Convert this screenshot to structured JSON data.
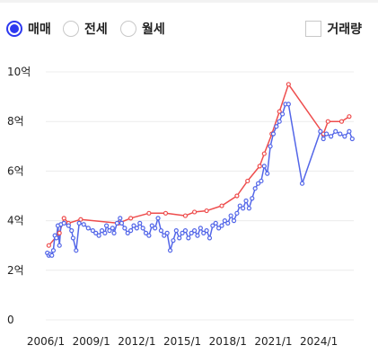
{
  "controls": {
    "radios": [
      {
        "label": "매매",
        "selected": true
      },
      {
        "label": "전세",
        "selected": false
      },
      {
        "label": "월세",
        "selected": false
      }
    ],
    "checkbox": {
      "label": "거래량",
      "checked": false
    }
  },
  "colors": {
    "accent": "#2d39f0",
    "max_line": "#ee4d4d",
    "min_line": "#5366e8",
    "grid": "#ececec"
  },
  "chart_data": {
    "type": "line",
    "title": "",
    "xlabel": "",
    "ylabel": "",
    "unit": "억",
    "ylim": [
      0,
      10
    ],
    "xlim": [
      2006.0,
      2026.3
    ],
    "yticks": [
      0,
      2,
      4,
      6,
      8,
      10
    ],
    "yticklabels": [
      "0",
      "2억",
      "4억",
      "6억",
      "8억",
      "10억"
    ],
    "xticks": [
      2006,
      2009,
      2012,
      2015,
      2018,
      2021,
      2024
    ],
    "xticklabels": [
      "2006/1",
      "2009/1",
      "2012/1",
      "2015/1",
      "2018/1",
      "2021/1",
      "2024/1"
    ],
    "grid": true,
    "series": [
      {
        "color": "#ee4d4d",
        "points": [
          [
            2006.2,
            3.0
          ],
          [
            2006.9,
            3.5
          ],
          [
            2007.2,
            4.1
          ],
          [
            2007.5,
            3.9
          ],
          [
            2008.3,
            4.05
          ],
          [
            2010.8,
            3.9
          ],
          [
            2011.6,
            4.1
          ],
          [
            2012.8,
            4.3
          ],
          [
            2013.9,
            4.3
          ],
          [
            2015.2,
            4.2
          ],
          [
            2015.8,
            4.35
          ],
          [
            2016.6,
            4.4
          ],
          [
            2017.6,
            4.6
          ],
          [
            2018.6,
            5.0
          ],
          [
            2019.3,
            5.6
          ],
          [
            2020.1,
            6.2
          ],
          [
            2020.4,
            6.7
          ],
          [
            2020.9,
            7.5
          ],
          [
            2021.4,
            8.4
          ],
          [
            2022.0,
            9.5
          ],
          [
            2024.3,
            7.5
          ],
          [
            2024.6,
            8.0
          ],
          [
            2025.5,
            8.0
          ],
          [
            2026.0,
            8.2
          ]
        ]
      },
      {
        "color": "#5366e8",
        "points": [
          [
            2006.1,
            2.7
          ],
          [
            2006.2,
            2.6
          ],
          [
            2006.3,
            2.65
          ],
          [
            2006.4,
            2.6
          ],
          [
            2006.5,
            2.8
          ],
          [
            2006.6,
            3.4
          ],
          [
            2006.7,
            3.3
          ],
          [
            2006.8,
            3.8
          ],
          [
            2006.9,
            3.0
          ],
          [
            2007.0,
            3.85
          ],
          [
            2007.2,
            3.9
          ],
          [
            2007.5,
            3.8
          ],
          [
            2007.7,
            3.6
          ],
          [
            2007.8,
            3.3
          ],
          [
            2008.0,
            2.8
          ],
          [
            2008.2,
            3.9
          ],
          [
            2008.5,
            3.85
          ],
          [
            2008.8,
            3.7
          ],
          [
            2009.1,
            3.6
          ],
          [
            2009.3,
            3.5
          ],
          [
            2009.5,
            3.4
          ],
          [
            2009.7,
            3.6
          ],
          [
            2009.9,
            3.5
          ],
          [
            2010.0,
            3.8
          ],
          [
            2010.2,
            3.6
          ],
          [
            2010.4,
            3.7
          ],
          [
            2010.5,
            3.5
          ],
          [
            2010.7,
            3.9
          ],
          [
            2010.9,
            4.1
          ],
          [
            2011.0,
            3.9
          ],
          [
            2011.2,
            3.7
          ],
          [
            2011.4,
            3.5
          ],
          [
            2011.6,
            3.6
          ],
          [
            2011.8,
            3.8
          ],
          [
            2012.0,
            3.7
          ],
          [
            2012.2,
            3.9
          ],
          [
            2012.4,
            3.7
          ],
          [
            2012.6,
            3.5
          ],
          [
            2012.8,
            3.4
          ],
          [
            2013.0,
            3.8
          ],
          [
            2013.2,
            3.7
          ],
          [
            2013.4,
            4.1
          ],
          [
            2013.6,
            3.6
          ],
          [
            2013.8,
            3.4
          ],
          [
            2014.0,
            3.5
          ],
          [
            2014.2,
            2.8
          ],
          [
            2014.4,
            3.2
          ],
          [
            2014.6,
            3.6
          ],
          [
            2014.8,
            3.3
          ],
          [
            2015.0,
            3.5
          ],
          [
            2015.2,
            3.6
          ],
          [
            2015.4,
            3.3
          ],
          [
            2015.6,
            3.5
          ],
          [
            2015.8,
            3.6
          ],
          [
            2016.0,
            3.4
          ],
          [
            2016.2,
            3.7
          ],
          [
            2016.4,
            3.5
          ],
          [
            2016.6,
            3.6
          ],
          [
            2016.8,
            3.3
          ],
          [
            2017.0,
            3.8
          ],
          [
            2017.2,
            3.9
          ],
          [
            2017.4,
            3.7
          ],
          [
            2017.6,
            3.8
          ],
          [
            2017.8,
            4.0
          ],
          [
            2018.0,
            3.9
          ],
          [
            2018.2,
            4.2
          ],
          [
            2018.4,
            4.0
          ],
          [
            2018.6,
            4.3
          ],
          [
            2018.8,
            4.6
          ],
          [
            2019.0,
            4.5
          ],
          [
            2019.2,
            4.8
          ],
          [
            2019.4,
            4.5
          ],
          [
            2019.6,
            4.9
          ],
          [
            2019.8,
            5.3
          ],
          [
            2020.0,
            5.5
          ],
          [
            2020.2,
            5.6
          ],
          [
            2020.4,
            6.2
          ],
          [
            2020.6,
            5.9
          ],
          [
            2020.8,
            7.0
          ],
          [
            2021.0,
            7.5
          ],
          [
            2021.2,
            7.8
          ],
          [
            2021.4,
            8.0
          ],
          [
            2021.6,
            8.3
          ],
          [
            2021.8,
            8.7
          ],
          [
            2022.0,
            8.7
          ],
          [
            2022.9,
            5.5
          ],
          [
            2024.1,
            7.6
          ],
          [
            2024.3,
            7.3
          ],
          [
            2024.5,
            7.5
          ],
          [
            2024.8,
            7.4
          ],
          [
            2025.1,
            7.6
          ],
          [
            2025.4,
            7.5
          ],
          [
            2025.7,
            7.4
          ],
          [
            2026.0,
            7.6
          ],
          [
            2026.2,
            7.3
          ]
        ]
      }
    ]
  }
}
